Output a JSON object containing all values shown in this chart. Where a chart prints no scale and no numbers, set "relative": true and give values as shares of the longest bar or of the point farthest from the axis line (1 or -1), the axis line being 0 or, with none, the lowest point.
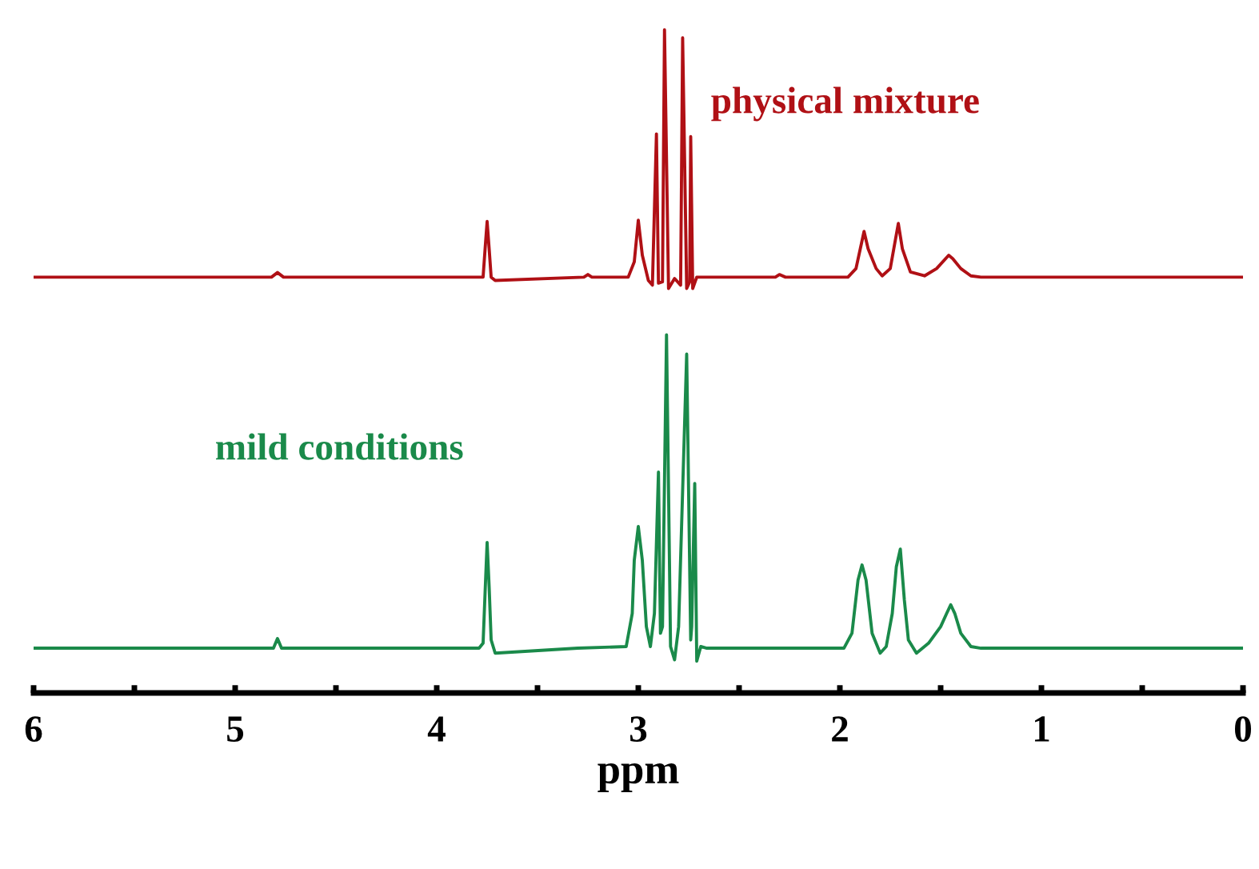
{
  "chart_data": {
    "type": "line",
    "relative": true,
    "xlabel": "ppm",
    "xlim": [
      6,
      0
    ],
    "xticks": [
      6,
      {
        "value": 5.5,
        "label": null
      },
      5,
      {
        "value": 4.5,
        "label": null
      },
      4,
      {
        "value": 3.5,
        "label": null
      },
      3,
      {
        "value": 2.5,
        "label": null
      },
      2,
      {
        "value": 1.5,
        "label": null
      },
      1,
      {
        "value": 0.5,
        "label": null
      },
      0
    ],
    "tick_labels": "x",
    "grid": false,
    "legend": false,
    "marker": "none",
    "line_style": "solid",
    "series": [
      {
        "name": "physical mixture",
        "color": "#b01015",
        "x": [
          6.0,
          4.82,
          4.79,
          4.76,
          3.8,
          3.77,
          3.76,
          3.75,
          3.74,
          3.73,
          3.71,
          3.27,
          3.25,
          3.23,
          3.05,
          3.02,
          3.0,
          2.98,
          2.95,
          2.93,
          2.91,
          2.9,
          2.88,
          2.87,
          2.85,
          2.82,
          2.79,
          2.78,
          2.76,
          2.745,
          2.74,
          2.73,
          2.71,
          2.32,
          2.3,
          2.27,
          1.96,
          1.92,
          1.88,
          1.86,
          1.82,
          1.79,
          1.75,
          1.71,
          1.69,
          1.65,
          1.58,
          1.52,
          1.46,
          1.44,
          1.4,
          1.35,
          1.3,
          0
        ],
        "values": [
          0.627,
          0.627,
          0.634,
          0.627,
          0.627,
          0.627,
          0.67,
          0.711,
          0.67,
          0.627,
          0.622,
          0.627,
          0.631,
          0.627,
          0.627,
          0.65,
          0.713,
          0.66,
          0.622,
          0.615,
          0.843,
          0.618,
          0.62,
          1.0,
          0.61,
          0.625,
          0.615,
          0.988,
          0.61,
          0.62,
          0.839,
          0.61,
          0.627,
          0.627,
          0.631,
          0.627,
          0.627,
          0.64,
          0.696,
          0.67,
          0.64,
          0.629,
          0.64,
          0.708,
          0.67,
          0.635,
          0.629,
          0.64,
          0.66,
          0.655,
          0.64,
          0.629,
          0.627,
          0.627
        ]
      },
      {
        "name": "mild conditions",
        "color": "#1a8a4a",
        "x": [
          6.0,
          4.81,
          4.79,
          4.77,
          3.79,
          3.77,
          3.76,
          3.75,
          3.74,
          3.73,
          3.71,
          3.3,
          3.06,
          3.03,
          3.02,
          3.0,
          2.98,
          2.96,
          2.94,
          2.92,
          2.9,
          2.89,
          2.88,
          2.86,
          2.84,
          2.82,
          2.8,
          2.76,
          2.74,
          2.735,
          2.72,
          2.71,
          2.69,
          2.66,
          1.98,
          1.94,
          1.91,
          1.89,
          1.87,
          1.84,
          1.8,
          1.77,
          1.74,
          1.72,
          1.7,
          1.68,
          1.66,
          1.62,
          1.56,
          1.5,
          1.47,
          1.45,
          1.43,
          1.4,
          1.35,
          1.3,
          0
        ],
        "values": [
          0.0675,
          0.0675,
          0.082,
          0.0675,
          0.0675,
          0.075,
          0.152,
          0.227,
          0.16,
          0.08,
          0.06,
          0.0675,
          0.07,
          0.12,
          0.2,
          0.251,
          0.2,
          0.1,
          0.07,
          0.12,
          0.333,
          0.09,
          0.1,
          0.54,
          0.07,
          0.05,
          0.1,
          0.511,
          0.08,
          0.1,
          0.316,
          0.048,
          0.07,
          0.0675,
          0.0675,
          0.09,
          0.17,
          0.193,
          0.17,
          0.09,
          0.06,
          0.07,
          0.12,
          0.19,
          0.217,
          0.14,
          0.08,
          0.06,
          0.075,
          0.1,
          0.12,
          0.133,
          0.12,
          0.09,
          0.07,
          0.0675,
          0.0675
        ]
      }
    ]
  }
}
